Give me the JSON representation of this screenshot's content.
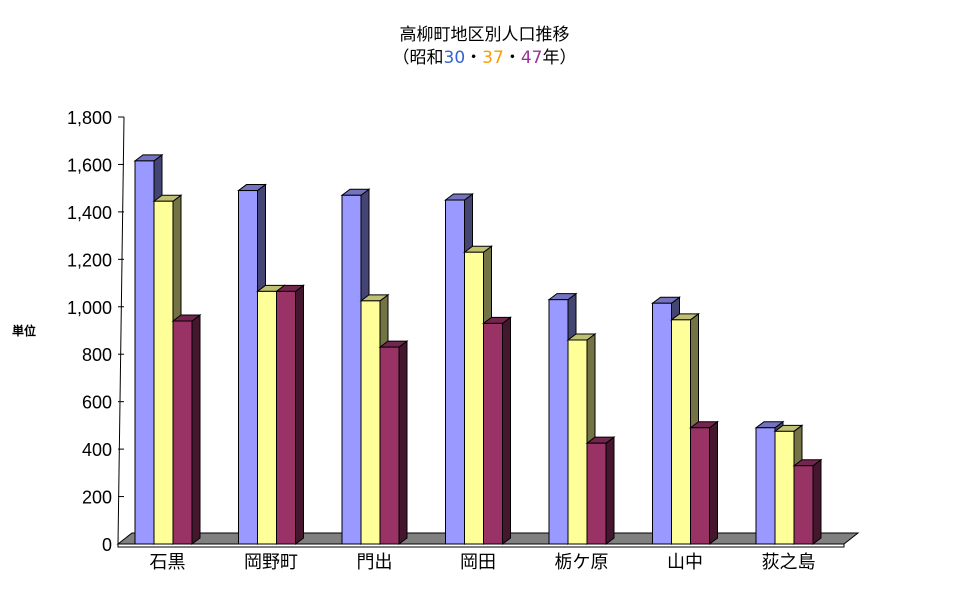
{
  "chart_data": {
    "type": "bar",
    "title": "高柳町地区別人口推移",
    "subtitle": {
      "open": "（昭和",
      "y1": "30",
      "sep1": "・",
      "y2": "37",
      "sep2": "・",
      "y3": "47",
      "close": "年）"
    },
    "ylabel": "単位",
    "xlabel": "",
    "ylim": [
      0,
      1800
    ],
    "yticks": [
      "0",
      "200",
      "400",
      "600",
      "800",
      "1,000",
      "1,200",
      "1,400",
      "1,600",
      "1,800"
    ],
    "categories": [
      "石黒",
      "岡野町",
      "門出",
      "岡田",
      "栃ケ原",
      "山中",
      "荻之島"
    ],
    "series": [
      {
        "values": [
          1615,
          1490,
          1470,
          1450,
          1030,
          1015,
          490
        ]
      },
      {
        "values": [
          1445,
          1065,
          1025,
          1230,
          860,
          945,
          475
        ]
      },
      {
        "values": [
          940,
          1065,
          830,
          930,
          425,
          490,
          330
        ]
      }
    ],
    "colors": {
      "series": [
        "#9999ff",
        "#ffff99",
        "#993366"
      ],
      "subtitle_y1": "#3366cc",
      "subtitle_y2": "#ff9900",
      "subtitle_y3": "#993399",
      "floor": "#808080"
    },
    "grid": false,
    "legend": "none"
  }
}
